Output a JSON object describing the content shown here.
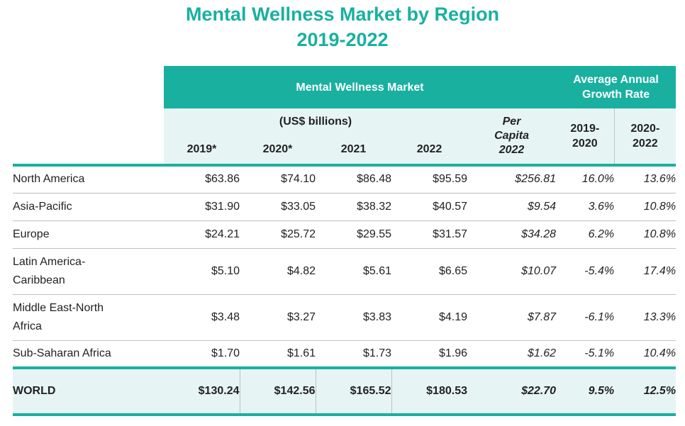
{
  "title": {
    "line1": "Mental Wellness Market by Region",
    "line2": "2019-2022"
  },
  "headers": {
    "market_group": "Mental Wellness Market",
    "growth_group_line1": "Average Annual",
    "growth_group_line2": "Growth Rate",
    "units": "(US$ billions)",
    "per_capita_line1": "Per",
    "per_capita_line2": "Capita",
    "per_capita_line3": "2022",
    "years": [
      "2019*",
      "2020*",
      "2021",
      "2022"
    ],
    "growth_a_line1": "2019-",
    "growth_a_line2": "2020",
    "growth_b_line1": "2020-",
    "growth_b_line2": "2022"
  },
  "rows": [
    {
      "region_line1": "North America",
      "region_line2": "",
      "v2019": "$63.86",
      "v2020": "$74.10",
      "v2021": "$86.48",
      "v2022": "$95.59",
      "per_capita": "$256.81",
      "g1920": "16.0%",
      "g2022": "13.6%"
    },
    {
      "region_line1": "Asia-Pacific",
      "region_line2": "",
      "v2019": "$31.90",
      "v2020": "$33.05",
      "v2021": "$38.32",
      "v2022": "$40.57",
      "per_capita": "$9.54",
      "g1920": "3.6%",
      "g2022": "10.8%"
    },
    {
      "region_line1": "Europe",
      "region_line2": "",
      "v2019": "$24.21",
      "v2020": "$25.72",
      "v2021": "$29.55",
      "v2022": "$31.57",
      "per_capita": "$34.28",
      "g1920": "6.2%",
      "g2022": "10.8%"
    },
    {
      "region_line1": "Latin America-",
      "region_line2": "Caribbean",
      "v2019": "$5.10",
      "v2020": "$4.82",
      "v2021": "$5.61",
      "v2022": "$6.65",
      "per_capita": "$10.07",
      "g1920": "-5.4%",
      "g2022": "17.4%"
    },
    {
      "region_line1": "Middle East-North",
      "region_line2": "Africa",
      "v2019": "$3.48",
      "v2020": "$3.27",
      "v2021": "$3.83",
      "v2022": "$4.19",
      "per_capita": "$7.87",
      "g1920": "-6.1%",
      "g2022": "13.3%"
    },
    {
      "region_line1": "Sub-Saharan Africa",
      "region_line2": "",
      "v2019": "$1.70",
      "v2020": "$1.61",
      "v2021": "$1.73",
      "v2022": "$1.96",
      "per_capita": "$1.62",
      "g1920": "-5.1%",
      "g2022": "10.4%"
    }
  ],
  "world": {
    "label": "WORLD",
    "v2019": "$130.24",
    "v2020": "$142.56",
    "v2021": "$165.52",
    "v2022": "$180.53",
    "per_capita": "$22.70",
    "g1920": "9.5%",
    "g2022": "12.5%"
  },
  "colors": {
    "teal": "#19b0a0",
    "light_teal": "#e6f5f3"
  }
}
